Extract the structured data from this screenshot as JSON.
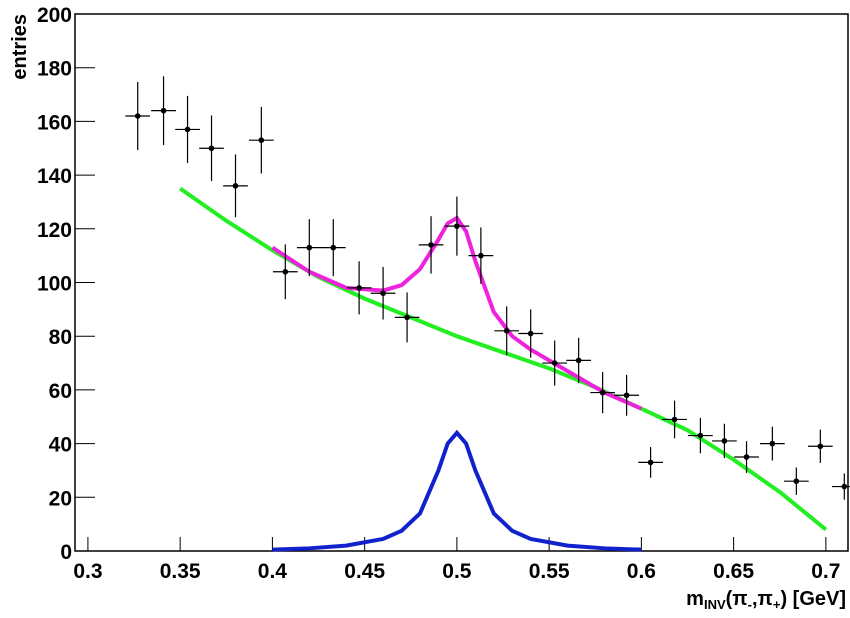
{
  "chart_data": {
    "type": "errorbar",
    "x_label": [
      "m",
      "INV",
      "(π",
      "-",
      ",π",
      "+",
      ") [GeV]"
    ],
    "y_label": "entries",
    "xlim": [
      0.293,
      0.712
    ],
    "ylim": [
      0,
      200
    ],
    "xticks": [
      0.3,
      0.35,
      0.4,
      0.45,
      0.5,
      0.55,
      0.6,
      0.65,
      0.7
    ],
    "yticks": [
      0,
      20,
      40,
      60,
      80,
      100,
      120,
      140,
      160,
      180,
      200
    ],
    "points": {
      "color": "#000000",
      "x": [
        0.327,
        0.341,
        0.354,
        0.367,
        0.38,
        0.394,
        0.407,
        0.42,
        0.433,
        0.447,
        0.46,
        0.473,
        0.486,
        0.5,
        0.513,
        0.527,
        0.54,
        0.553,
        0.566,
        0.579,
        0.592,
        0.605,
        0.618,
        0.632,
        0.645,
        0.657,
        0.671,
        0.684,
        0.697,
        0.71
      ],
      "values": [
        162,
        164,
        157,
        150,
        136,
        153,
        104,
        113,
        113,
        98,
        96,
        87,
        114,
        121,
        110,
        82,
        81,
        70,
        71,
        59,
        58,
        33,
        49,
        43,
        41,
        35,
        40,
        26,
        39,
        24
      ],
      "y_err": [
        12.7,
        12.8,
        12.5,
        12.2,
        11.7,
        12.4,
        10.2,
        10.6,
        10.6,
        9.9,
        9.8,
        9.3,
        10.7,
        11,
        10.5,
        9.1,
        9,
        8.4,
        8.4,
        7.7,
        7.6,
        5.7,
        7,
        6.6,
        6.4,
        5.9,
        6.3,
        5.1,
        6.2,
        4.9
      ],
      "x_err": 0.0067
    },
    "series": [
      {
        "color": "#22ee22",
        "x": [
          0.35,
          0.375,
          0.4,
          0.425,
          0.45,
          0.475,
          0.5,
          0.525,
          0.55,
          0.575,
          0.6,
          0.625,
          0.65,
          0.675,
          0.7
        ],
        "values": [
          135,
          123,
          112,
          102,
          94,
          87,
          80,
          74,
          68,
          61,
          53,
          45,
          34,
          22,
          8
        ]
      },
      {
        "color": "#ee22dd",
        "x": [
          0.4,
          0.42,
          0.44,
          0.46,
          0.47,
          0.48,
          0.49,
          0.495,
          0.5,
          0.505,
          0.51,
          0.52,
          0.53,
          0.54,
          0.56,
          0.58,
          0.6
        ],
        "values": [
          113,
          104,
          98,
          97,
          99,
          105,
          116,
          122,
          124,
          119,
          108,
          89,
          80,
          75,
          67,
          59,
          53
        ]
      },
      {
        "color": "#1122cc",
        "x": [
          0.4,
          0.42,
          0.44,
          0.46,
          0.47,
          0.48,
          0.49,
          0.495,
          0.5,
          0.505,
          0.51,
          0.52,
          0.53,
          0.54,
          0.56,
          0.58,
          0.6
        ],
        "values": [
          0.5,
          1,
          2,
          4.5,
          7.5,
          14,
          30,
          40,
          44,
          40,
          30,
          14,
          7.5,
          4.5,
          2,
          1,
          0.5
        ]
      }
    ]
  }
}
